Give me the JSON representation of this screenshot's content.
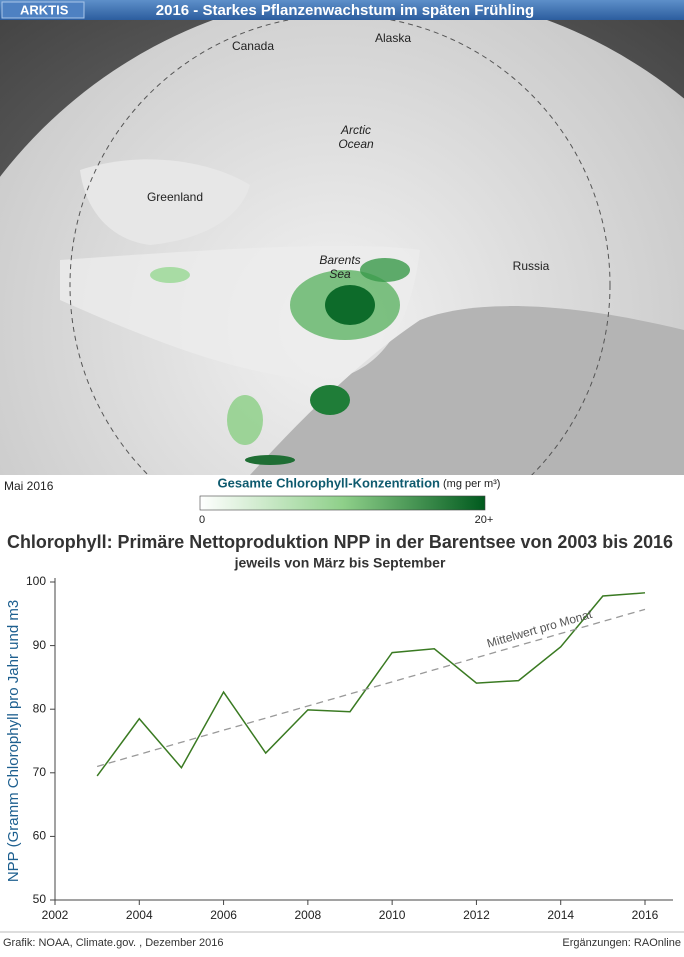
{
  "header": {
    "section": "ARKTIS",
    "title": "2016 - Starkes Pflanzenwachstum im späten Frühling"
  },
  "map": {
    "labels": [
      "Canada",
      "Alaska",
      "Arctic",
      "Ocean",
      "Greenland",
      "Barents",
      "Sea",
      "Russia"
    ],
    "date": "Mai 2016",
    "legend": {
      "title": "Gesamte Chlorophyll-Konzentration",
      "unit": "(mg per m³)",
      "min": "0",
      "max": "20+"
    }
  },
  "chart_data": {
    "type": "line",
    "title": "Chlorophyll: Primäre Nettoproduktion NPP in der Barentsee von 2003 bis 2016",
    "subtitle": "jeweils von März bis September",
    "y_label": "NPP (Gramm  Chlorophyll pro Jahr und m3",
    "x": [
      2003,
      2004,
      2005,
      2006,
      2007,
      2008,
      2009,
      2010,
      2011,
      2012,
      2013,
      2014,
      2015,
      2016
    ],
    "series": [
      {
        "color": "#3a7a22",
        "dash": false,
        "values": [
          69.5,
          78.5,
          70.8,
          82.7,
          73.1,
          79.9,
          79.6,
          88.9,
          89.5,
          84.1,
          84.5,
          89.8,
          97.8,
          98.3
        ]
      },
      {
        "name": "Mittelwert pro Monat",
        "color": "#999999",
        "dash": true,
        "values": [
          71.0,
          72.9,
          74.8,
          76.7,
          78.6,
          80.5,
          82.4,
          84.3,
          86.2,
          88.1,
          90.0,
          91.9,
          93.8,
          95.7
        ]
      }
    ],
    "xlim": [
      2002,
      2016
    ],
    "xticks": [
      2002,
      2004,
      2006,
      2008,
      2010,
      2012,
      2014,
      2016
    ],
    "ylim": [
      50,
      100
    ],
    "yticks": [
      50,
      60,
      70,
      80,
      90,
      100
    ],
    "grid": false
  },
  "footer": {
    "source": "Grafik: NOAA, Climate.gov. , Dezember 2016",
    "credit": "Ergänzungen: RAOnline"
  }
}
